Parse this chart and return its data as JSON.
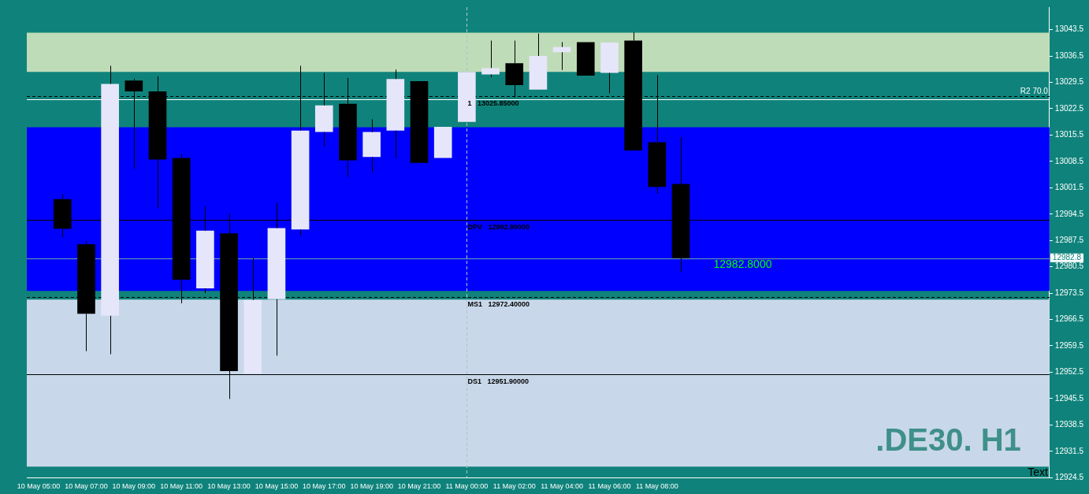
{
  "chart_data": {
    "type": "candlestick",
    "categories": [
      "10 May 05:00",
      null,
      "10 May 07:00",
      null,
      "10 May 09:00",
      null,
      "10 May 11:00",
      null,
      "10 May 13:00",
      null,
      "10 May 15:00",
      null,
      "10 May 17:00",
      null,
      "10 May 19:00",
      null,
      "10 May 21:00",
      null,
      "11 May 00:00",
      null,
      "11 May 02:00",
      null,
      "11 May 04:00",
      null,
      "11 May 06:00",
      null,
      "11 May 08:00",
      null,
      null,
      null,
      null,
      null,
      null,
      null,
      null,
      null,
      null,
      null,
      null,
      null,
      null,
      null,
      null
    ],
    "ohlc": [
      null,
      [
        12998.5,
        12999.8,
        12988.4,
        12990.6
      ],
      [
        12986.5,
        12987.3,
        12958.1,
        12968.0
      ],
      [
        12967.5,
        13033.9,
        12957.3,
        13029.1
      ],
      [
        13030.0,
        13030.5,
        13006.5,
        13027.1
      ],
      [
        13027.1,
        13031.1,
        12996.1,
        13009.0
      ],
      [
        13009.4,
        13010.5,
        12970.8,
        12977.1
      ],
      [
        12974.8,
        12996.6,
        12973.5,
        12990.1
      ],
      [
        12989.4,
        12994.6,
        12945.4,
        12952.8
      ],
      [
        12952.1,
        12983.0,
        12952.1,
        12971.7
      ],
      [
        12971.9,
        12997.6,
        12956.9,
        12990.8
      ],
      [
        12990.4,
        13033.9,
        12988.9,
        13016.7
      ],
      [
        13016.3,
        13032.0,
        13012.4,
        13023.4
      ],
      [
        13023.8,
        13030.7,
        13004.4,
        13008.8
      ],
      [
        13009.7,
        13019.7,
        13005.6,
        13016.3
      ],
      [
        13016.7,
        13032.9,
        13009.3,
        13030.4
      ],
      [
        13029.8,
        13029.8,
        13008.1,
        13008.1
      ],
      [
        13009.4,
        13017.7,
        13009.4,
        13017.7
      ],
      [
        13019.0,
        13032.3,
        13019.0,
        13032.3
      ],
      [
        13031.6,
        13040.6,
        13030.9,
        13033.3
      ],
      [
        13034.6,
        13040.6,
        13025.5,
        13028.8
      ],
      [
        13027.6,
        13042.5,
        13027.6,
        13036.5
      ],
      [
        13037.5,
        13040.2,
        13032.8,
        13038.9
      ],
      [
        13040.2,
        13040.2,
        13031.3,
        13031.3
      ],
      [
        13032.0,
        13040.1,
        13026.6,
        13040.1
      ],
      [
        13040.6,
        13042.8,
        13011.4,
        13011.4
      ],
      [
        13013.6,
        13031.4,
        13000.0,
        13001.7
      ],
      [
        13002.5,
        13014.9,
        12979.2,
        12982.8
      ],
      null,
      null,
      null,
      null,
      null,
      null,
      null,
      null,
      null,
      null,
      null,
      null,
      null,
      null,
      null
    ],
    "colors": [
      null,
      "#000000",
      "#000000",
      "#e6e6fa",
      "#000000",
      "#000000",
      "#000000",
      "#e6e6fa",
      "#000000",
      "#e6e6fa",
      "#e6e6fa",
      "#e6e6fa",
      "#e6e6fa",
      "#000000",
      "#e6e6fa",
      "#e6e6fa",
      "#000000",
      "#e6e6fa",
      "#e6e6fa",
      "#e6e6fa",
      "#000000",
      "#e6e6fa",
      "#e6e6fa",
      "#000000",
      "#e6e6fa",
      "#000000",
      "#000000",
      "#000000",
      null,
      null,
      null,
      null,
      null,
      null,
      null,
      null,
      null,
      null,
      null,
      null,
      null,
      null,
      null
    ],
    "ylim": [
      12924.5,
      13049.5
    ],
    "yticks": [
      12924.5,
      12931.5,
      12938.5,
      12945.5,
      12952.5,
      12959.5,
      12966.5,
      12973.5,
      12980.5,
      12987.5,
      12994.5,
      13001.5,
      13008.5,
      13015.5,
      13022.5,
      13029.5,
      13036.5,
      13043.5
    ],
    "bands": [
      {
        "axis": "y",
        "from": 12974.1,
        "to": 13017.6,
        "color": "#0000ff"
      },
      {
        "axis": "y",
        "from": 12927.4,
        "to": 12971.8,
        "color": "#c8d8ea"
      },
      {
        "axis": "y",
        "from": 13032.3,
        "to": 13042.7,
        "color": "#bfdcb8"
      }
    ],
    "ref_lines": [
      {
        "axis": "y",
        "value": 13025.05,
        "color": "#ffffff",
        "line_style": "solid"
      },
      {
        "axis": "y",
        "value": 13025.85,
        "label": "1   13025.85000",
        "color": "#000000",
        "line_style": "dashed"
      },
      {
        "axis": "y",
        "value": 12992.9,
        "label": "DPV   12992.90000",
        "color": "#000000",
        "line_style": "solid"
      },
      {
        "axis": "y",
        "value": 12982.8,
        "label": "12982.8",
        "color": "#6aa8a4",
        "line_style": "solid"
      },
      {
        "axis": "y",
        "value": 12972.4,
        "label": "MS1   12972.40000",
        "color": "#000000",
        "line_style": "dashed"
      },
      {
        "axis": "y",
        "value": 12951.9,
        "label": "DS1   12951.90000",
        "color": "#000000",
        "line_style": "solid"
      },
      {
        "axis": "x",
        "value": "11 May 00:00",
        "color": "#b0c4c4",
        "line_style": "dashed"
      }
    ],
    "annotations": [
      ".DE30. H1",
      "Text",
      {
        "text": "R2 70.0",
        "y": 13025.85
      },
      {
        "text": "12982.8000",
        "y": 12982.8
      }
    ],
    "grid": false,
    "legend": false
  }
}
